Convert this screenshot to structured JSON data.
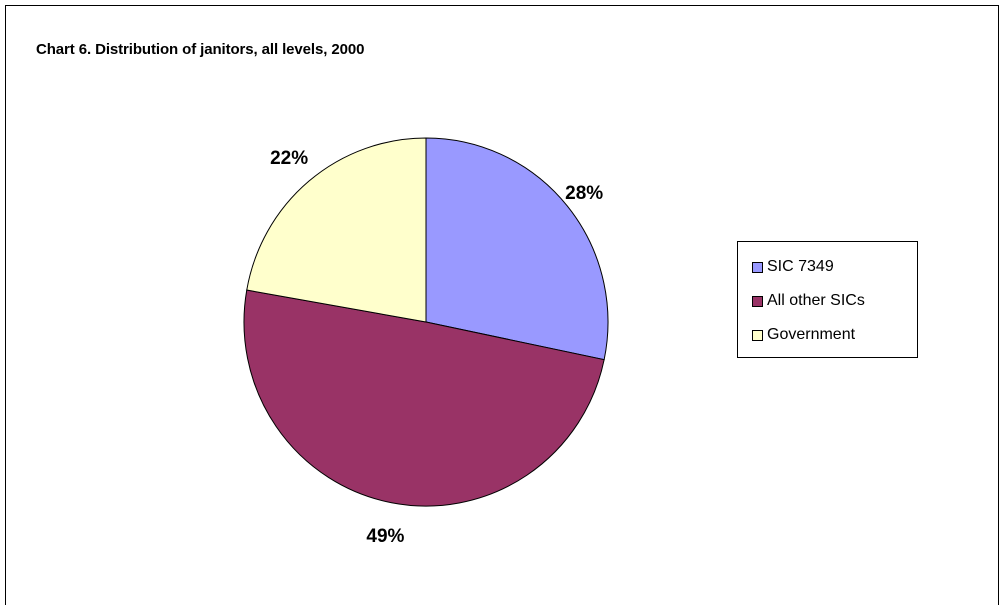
{
  "chart_data": {
    "type": "pie",
    "title": "Chart 6.  Distribution of janitors, all levels, 2000",
    "categories": [
      "SIC 7349",
      "All other SICs",
      "Government"
    ],
    "values": [
      28,
      49,
      22
    ],
    "labels": [
      "28%",
      "49%",
      "22%"
    ],
    "colors": [
      "#9999ff",
      "#993366",
      "#ffffcc"
    ],
    "legend_position": "right",
    "start_angle": "12 o'clock",
    "direction": "clockwise"
  }
}
